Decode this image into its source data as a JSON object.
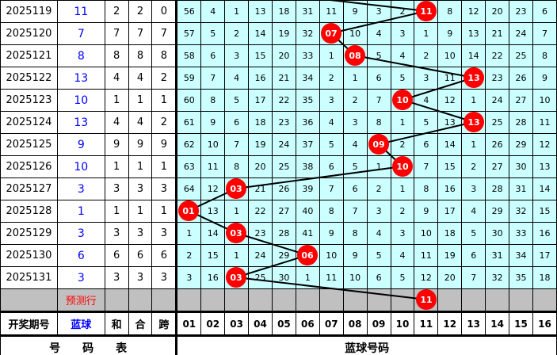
{
  "colors": {
    "ball": "#ff0000",
    "cell_bg": "#ccffff",
    "pred_bg": "#c0c0c0",
    "blue_text": "#0000ff",
    "line": "#000000"
  },
  "rows": [
    {
      "period": "2025119",
      "blue": "11",
      "he": "2",
      "hehe": "2",
      "kua": "0",
      "cells": [
        "56",
        "4",
        "1",
        "13",
        "18",
        "31",
        "11",
        "9",
        "3",
        "2",
        "11",
        "8",
        "12",
        "20",
        "23",
        "6"
      ],
      "hit": 11
    },
    {
      "period": "2025120",
      "blue": "7",
      "he": "7",
      "hehe": "7",
      "kua": "7",
      "cells": [
        "57",
        "5",
        "2",
        "14",
        "19",
        "32",
        "07",
        "10",
        "4",
        "3",
        "1",
        "9",
        "13",
        "21",
        "24",
        "7"
      ],
      "hit": 7
    },
    {
      "period": "2025121",
      "blue": "8",
      "he": "8",
      "hehe": "8",
      "kua": "8",
      "cells": [
        "58",
        "6",
        "3",
        "15",
        "20",
        "33",
        "1",
        "08",
        "5",
        "4",
        "2",
        "10",
        "14",
        "22",
        "25",
        "8"
      ],
      "hit": 8
    },
    {
      "period": "2025122",
      "blue": "13",
      "he": "4",
      "hehe": "4",
      "kua": "2",
      "cells": [
        "59",
        "7",
        "4",
        "16",
        "21",
        "34",
        "2",
        "1",
        "6",
        "5",
        "3",
        "11",
        "13",
        "23",
        "26",
        "9"
      ],
      "hit": 13
    },
    {
      "period": "2025123",
      "blue": "10",
      "he": "1",
      "hehe": "1",
      "kua": "1",
      "cells": [
        "60",
        "8",
        "5",
        "17",
        "22",
        "35",
        "3",
        "2",
        "7",
        "10",
        "4",
        "12",
        "1",
        "24",
        "27",
        "10"
      ],
      "hit": 10
    },
    {
      "period": "2025124",
      "blue": "13",
      "he": "4",
      "hehe": "4",
      "kua": "2",
      "cells": [
        "61",
        "9",
        "6",
        "18",
        "23",
        "36",
        "4",
        "3",
        "8",
        "1",
        "5",
        "13",
        "13",
        "25",
        "28",
        "11"
      ],
      "hit": 13
    },
    {
      "period": "2025125",
      "blue": "9",
      "he": "9",
      "hehe": "9",
      "kua": "9",
      "cells": [
        "62",
        "10",
        "7",
        "19",
        "24",
        "37",
        "5",
        "4",
        "09",
        "2",
        "6",
        "14",
        "1",
        "26",
        "29",
        "12"
      ],
      "hit": 9
    },
    {
      "period": "2025126",
      "blue": "10",
      "he": "1",
      "hehe": "1",
      "kua": "1",
      "cells": [
        "63",
        "11",
        "8",
        "20",
        "25",
        "38",
        "6",
        "5",
        "1",
        "10",
        "7",
        "15",
        "2",
        "27",
        "30",
        "13"
      ],
      "hit": 10
    },
    {
      "period": "2025127",
      "blue": "3",
      "he": "3",
      "hehe": "3",
      "kua": "3",
      "cells": [
        "64",
        "12",
        "03",
        "21",
        "26",
        "39",
        "7",
        "6",
        "2",
        "1",
        "8",
        "16",
        "3",
        "28",
        "31",
        "14"
      ],
      "hit": 3
    },
    {
      "period": "2025128",
      "blue": "1",
      "he": "1",
      "hehe": "1",
      "kua": "1",
      "cells": [
        "01",
        "13",
        "1",
        "22",
        "27",
        "40",
        "8",
        "7",
        "3",
        "2",
        "9",
        "17",
        "4",
        "29",
        "32",
        "15"
      ],
      "hit": 1
    },
    {
      "period": "2025129",
      "blue": "3",
      "he": "3",
      "hehe": "3",
      "kua": "3",
      "cells": [
        "1",
        "14",
        "03",
        "23",
        "28",
        "41",
        "9",
        "8",
        "4",
        "3",
        "10",
        "18",
        "5",
        "30",
        "33",
        "16"
      ],
      "hit": 3
    },
    {
      "period": "2025130",
      "blue": "6",
      "he": "6",
      "hehe": "6",
      "kua": "6",
      "cells": [
        "2",
        "15",
        "1",
        "24",
        "29",
        "06",
        "10",
        "9",
        "5",
        "4",
        "11",
        "19",
        "6",
        "31",
        "34",
        "17"
      ],
      "hit": 6
    },
    {
      "period": "2025131",
      "blue": "3",
      "he": "3",
      "hehe": "3",
      "kua": "3",
      "cells": [
        "3",
        "16",
        "03",
        "25",
        "30",
        "1",
        "11",
        "10",
        "6",
        "5",
        "12",
        "20",
        "7",
        "32",
        "35",
        "18"
      ],
      "hit": 3
    }
  ],
  "prediction": {
    "label": "预测行",
    "hit": 11,
    "ball": "11"
  },
  "header": {
    "period": "开奖期号",
    "blue": "蓝球",
    "he": "和",
    "hehe": "合",
    "kua": "跨",
    "numbers": [
      "01",
      "02",
      "03",
      "04",
      "05",
      "06",
      "07",
      "08",
      "09",
      "10",
      "11",
      "12",
      "13",
      "14",
      "15",
      "16"
    ]
  },
  "footer": {
    "left": "号　　码　　表",
    "right": "蓝球号码"
  }
}
